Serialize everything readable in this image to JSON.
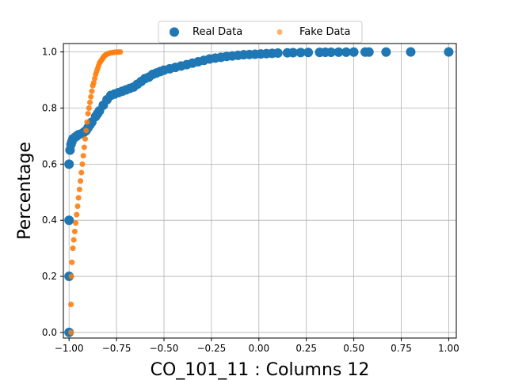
{
  "chart_data": {
    "type": "scatter",
    "title": "",
    "xlabel": "CO_101_11 : Columns 12",
    "ylabel": "Percentage",
    "xlim": [
      -1.03,
      1.04
    ],
    "ylim": [
      -0.02,
      1.03
    ],
    "xticks": [
      -1.0,
      -0.75,
      -0.5,
      -0.25,
      0.0,
      0.25,
      0.5,
      0.75,
      1.0
    ],
    "xtick_labels": [
      "−1.00",
      "−0.75",
      "−0.50",
      "−0.25",
      "0.00",
      "0.25",
      "0.50",
      "0.75",
      "1.00"
    ],
    "yticks": [
      0.0,
      0.2,
      0.4,
      0.6,
      0.8,
      1.0
    ],
    "ytick_labels": [
      "0.0",
      "0.2",
      "0.4",
      "0.6",
      "0.8",
      "1.0"
    ],
    "grid": true,
    "legend": {
      "position": "top-center",
      "columns": 2
    },
    "series": [
      {
        "name": "Real Data",
        "color": "#1f77b4",
        "marker": "circle-large",
        "x": [
          -1.0,
          -1.0,
          -1.0,
          -1.0,
          -0.995,
          -0.99,
          -0.985,
          -0.98,
          -0.97,
          -0.96,
          -0.95,
          -0.93,
          -0.92,
          -0.91,
          -0.9,
          -0.89,
          -0.88,
          -0.86,
          -0.85,
          -0.84,
          -0.82,
          -0.8,
          -0.78,
          -0.76,
          -0.74,
          -0.72,
          -0.7,
          -0.68,
          -0.66,
          -0.64,
          -0.62,
          -0.6,
          -0.58,
          -0.56,
          -0.54,
          -0.52,
          -0.5,
          -0.47,
          -0.44,
          -0.41,
          -0.38,
          -0.35,
          -0.32,
          -0.29,
          -0.26,
          -0.23,
          -0.2,
          -0.17,
          -0.14,
          -0.11,
          -0.08,
          -0.05,
          -0.02,
          0.01,
          0.04,
          0.07,
          0.1,
          0.15,
          0.18,
          0.22,
          0.26,
          0.32,
          0.35,
          0.38,
          0.42,
          0.46,
          0.5,
          0.56,
          0.58,
          0.67,
          0.8,
          1.0
        ],
        "y": [
          0.0,
          0.2,
          0.4,
          0.6,
          0.65,
          0.67,
          0.68,
          0.69,
          0.695,
          0.7,
          0.705,
          0.71,
          0.715,
          0.72,
          0.73,
          0.74,
          0.75,
          0.77,
          0.78,
          0.79,
          0.81,
          0.83,
          0.845,
          0.85,
          0.855,
          0.86,
          0.865,
          0.87,
          0.875,
          0.885,
          0.895,
          0.905,
          0.91,
          0.92,
          0.925,
          0.93,
          0.935,
          0.94,
          0.945,
          0.95,
          0.955,
          0.96,
          0.965,
          0.97,
          0.975,
          0.978,
          0.981,
          0.984,
          0.986,
          0.988,
          0.99,
          0.991,
          0.992,
          0.993,
          0.994,
          0.995,
          0.996,
          0.997,
          0.9975,
          0.998,
          0.9983,
          0.9986,
          0.9988,
          0.999,
          0.9992,
          0.9994,
          0.9995,
          0.9996,
          0.9997,
          0.9998,
          0.9999,
          1.0
        ]
      },
      {
        "name": "Fake Data",
        "color": "#ff7f0e",
        "marker": "circle-small",
        "x": [
          -0.99,
          -0.99,
          -0.988,
          -0.985,
          -0.98,
          -0.975,
          -0.97,
          -0.965,
          -0.96,
          -0.955,
          -0.95,
          -0.945,
          -0.94,
          -0.935,
          -0.93,
          -0.925,
          -0.92,
          -0.915,
          -0.91,
          -0.905,
          -0.9,
          -0.895,
          -0.89,
          -0.885,
          -0.88,
          -0.875,
          -0.87,
          -0.865,
          -0.86,
          -0.855,
          -0.85,
          -0.845,
          -0.84,
          -0.835,
          -0.83,
          -0.825,
          -0.82,
          -0.815,
          -0.81,
          -0.805,
          -0.8,
          -0.79,
          -0.78,
          -0.77,
          -0.76,
          -0.75,
          -0.74,
          -0.73
        ],
        "y": [
          0.0,
          0.1,
          0.2,
          0.25,
          0.3,
          0.33,
          0.36,
          0.39,
          0.42,
          0.45,
          0.48,
          0.51,
          0.54,
          0.57,
          0.6,
          0.63,
          0.66,
          0.69,
          0.72,
          0.75,
          0.78,
          0.8,
          0.82,
          0.84,
          0.86,
          0.88,
          0.89,
          0.905,
          0.92,
          0.93,
          0.94,
          0.95,
          0.96,
          0.965,
          0.97,
          0.975,
          0.98,
          0.985,
          0.988,
          0.99,
          0.993,
          0.995,
          0.997,
          0.998,
          0.999,
          0.9995,
          0.9998,
          1.0
        ]
      }
    ]
  }
}
